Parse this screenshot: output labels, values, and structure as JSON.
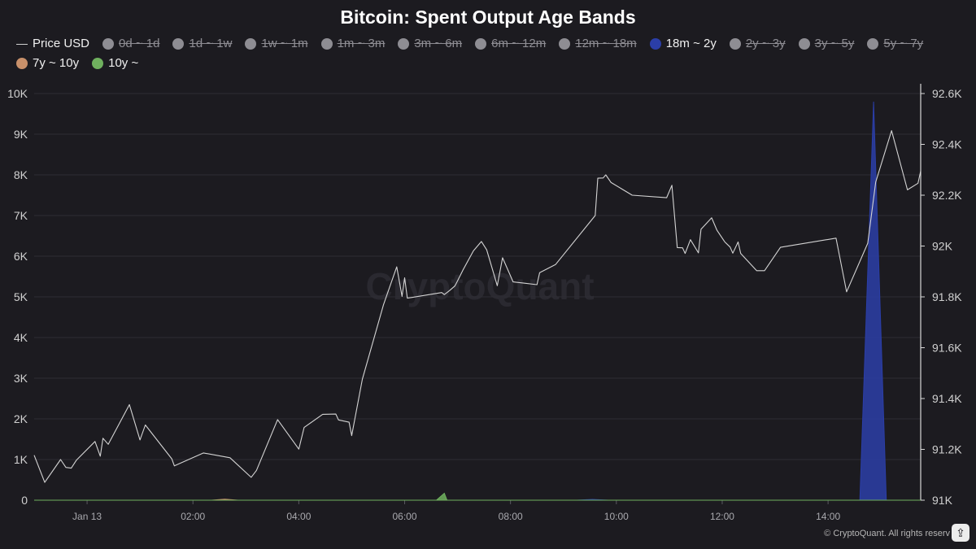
{
  "chart_data": {
    "type": "line",
    "title": "Bitcoin: Spent Output Age Bands",
    "legend": [
      {
        "name": "Price USD",
        "kind": "line",
        "color": "#cfcfcf",
        "visible": true
      },
      {
        "name": "0d ~ 1d",
        "kind": "dot",
        "color": "#8e8d93",
        "visible": false
      },
      {
        "name": "1d ~ 1w",
        "kind": "dot",
        "color": "#8e8d93",
        "visible": false
      },
      {
        "name": "1w ~ 1m",
        "kind": "dot",
        "color": "#8e8d93",
        "visible": false
      },
      {
        "name": "1m ~ 3m",
        "kind": "dot",
        "color": "#8e8d93",
        "visible": false
      },
      {
        "name": "3m ~ 6m",
        "kind": "dot",
        "color": "#8e8d93",
        "visible": false
      },
      {
        "name": "6m ~ 12m",
        "kind": "dot",
        "color": "#8e8d93",
        "visible": false
      },
      {
        "name": "12m ~ 18m",
        "kind": "dot",
        "color": "#8e8d93",
        "visible": false
      },
      {
        "name": "18m ~ 2y",
        "kind": "dot",
        "color": "#2b3ea8",
        "visible": true
      },
      {
        "name": "2y ~ 3y",
        "kind": "dot",
        "color": "#8e8d93",
        "visible": false
      },
      {
        "name": "3y ~ 5y",
        "kind": "dot",
        "color": "#8e8d93",
        "visible": false
      },
      {
        "name": "5y ~ 7y",
        "kind": "dot",
        "color": "#8e8d93",
        "visible": false
      },
      {
        "name": "7y ~ 10y",
        "kind": "dot",
        "color": "#c8906a",
        "visible": true
      },
      {
        "name": "10y ~",
        "kind": "dot",
        "color": "#6fb05e",
        "visible": true
      }
    ],
    "x_axis": {
      "start": "Jan 13 00:00",
      "end": "Jan 13 15:30",
      "tick_labels": [
        "Jan 13",
        "02:00",
        "04:00",
        "06:00",
        "08:00",
        "10:00",
        "12:00",
        "14:00"
      ],
      "tick_hours": [
        1,
        3,
        5,
        7,
        9,
        11,
        13,
        15
      ]
    },
    "y_left": {
      "min": 0,
      "max": 10000,
      "tick_values": [
        0,
        1000,
        2000,
        3000,
        4000,
        5000,
        6000,
        7000,
        8000,
        9000,
        10000
      ],
      "tick_labels": [
        "0",
        "1K",
        "2K",
        "3K",
        "4K",
        "5K",
        "6K",
        "7K",
        "8K",
        "9K",
        "10K"
      ]
    },
    "y_right": {
      "min": 91000,
      "max": 92600,
      "tick_values": [
        91000,
        91200,
        91400,
        91600,
        91800,
        92000,
        92200,
        92400,
        92600
      ],
      "tick_labels": [
        "91K",
        "91.2K",
        "91.4K",
        "91.6K",
        "91.8K",
        "92K",
        "92.2K",
        "92.4K",
        "92.6K"
      ]
    },
    "grid": true,
    "legend_position": "top-left",
    "series": [
      {
        "name": "Price USD",
        "axis": "right",
        "color": "#d4d4d4",
        "points": [
          [
            0.0,
            91177
          ],
          [
            0.2,
            91070
          ],
          [
            0.5,
            91160
          ],
          [
            0.6,
            91129
          ],
          [
            0.7,
            91126
          ],
          [
            0.8,
            91158
          ],
          [
            1.15,
            91231
          ],
          [
            1.25,
            91173
          ],
          [
            1.3,
            91244
          ],
          [
            1.4,
            91220
          ],
          [
            1.8,
            91376
          ],
          [
            2.0,
            91237
          ],
          [
            2.1,
            91296
          ],
          [
            2.6,
            91163
          ],
          [
            2.65,
            91135
          ],
          [
            3.2,
            91186
          ],
          [
            3.7,
            91167
          ],
          [
            4.1,
            91090
          ],
          [
            4.2,
            91117
          ],
          [
            4.6,
            91317
          ],
          [
            5.0,
            91201
          ],
          [
            5.1,
            91286
          ],
          [
            5.45,
            91338
          ],
          [
            5.7,
            91339
          ],
          [
            5.75,
            91316
          ],
          [
            5.95,
            91307
          ],
          [
            6.0,
            91254
          ],
          [
            6.2,
            91476
          ],
          [
            6.6,
            91769
          ],
          [
            6.85,
            91918
          ],
          [
            6.95,
            91802
          ],
          [
            7.0,
            91875
          ],
          [
            7.05,
            91795
          ],
          [
            7.7,
            91817
          ],
          [
            7.75,
            91809
          ],
          [
            7.85,
            91825
          ],
          [
            7.95,
            91843
          ],
          [
            8.0,
            91863
          ],
          [
            8.1,
            91905
          ],
          [
            8.3,
            91981
          ],
          [
            8.45,
            92018
          ],
          [
            8.55,
            91985
          ],
          [
            8.75,
            91844
          ],
          [
            8.85,
            91954
          ],
          [
            9.05,
            91859
          ],
          [
            9.25,
            91854
          ],
          [
            9.5,
            91848
          ],
          [
            9.55,
            91895
          ],
          [
            9.85,
            91927
          ],
          [
            10.6,
            92120
          ],
          [
            10.65,
            92267
          ],
          [
            10.75,
            92268
          ],
          [
            10.8,
            92280
          ],
          [
            10.9,
            92250
          ],
          [
            11.3,
            92200
          ],
          [
            11.95,
            92190
          ],
          [
            12.05,
            92239
          ],
          [
            12.15,
            91994
          ],
          [
            12.25,
            91993
          ],
          [
            12.3,
            91971
          ],
          [
            12.4,
            92025
          ],
          [
            12.55,
            91973
          ],
          [
            12.6,
            92066
          ],
          [
            12.8,
            92111
          ],
          [
            12.9,
            92062
          ],
          [
            13.05,
            92016
          ],
          [
            13.15,
            91996
          ],
          [
            13.2,
            91972
          ],
          [
            13.3,
            92016
          ],
          [
            13.35,
            91971
          ],
          [
            13.65,
            91903
          ],
          [
            13.8,
            91903
          ],
          [
            14.1,
            91995
          ],
          [
            15.15,
            92031
          ],
          [
            15.35,
            91820
          ],
          [
            15.75,
            92011
          ],
          [
            15.9,
            92252
          ],
          [
            16.2,
            92454
          ],
          [
            16.5,
            92221
          ],
          [
            16.7,
            92247
          ],
          [
            16.75,
            92295
          ]
        ]
      },
      {
        "name": "18m ~ 2y",
        "axis": "left",
        "color": "#2b3ea8",
        "points": [
          [
            0,
            0
          ],
          [
            10.25,
            0
          ],
          [
            10.55,
            20
          ],
          [
            10.85,
            0
          ],
          [
            15.6,
            0
          ],
          [
            15.86,
            9800
          ],
          [
            16.1,
            0
          ],
          [
            16.75,
            0
          ]
        ]
      },
      {
        "name": "7y ~ 10y",
        "axis": "left",
        "color": "#c8906a",
        "points": [
          [
            0,
            0
          ],
          [
            3.35,
            0
          ],
          [
            3.6,
            25
          ],
          [
            3.85,
            0
          ],
          [
            16.75,
            0
          ]
        ]
      },
      {
        "name": "10y ~",
        "axis": "left",
        "color": "#6fb05e",
        "points": [
          [
            0,
            0
          ],
          [
            7.6,
            0
          ],
          [
            7.75,
            170
          ],
          [
            7.8,
            0
          ],
          [
            16.75,
            0
          ]
        ]
      }
    ],
    "watermark": "CryptoQuant",
    "copyright": "© CryptoQuant. All rights reserv"
  },
  "icons": {
    "action": "share-icon"
  }
}
